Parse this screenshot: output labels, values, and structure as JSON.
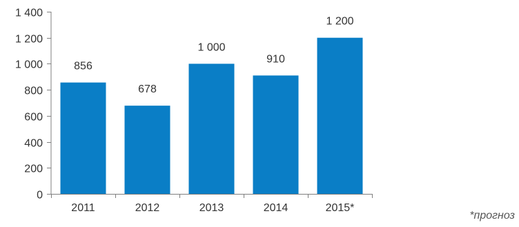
{
  "chart_data": {
    "type": "bar",
    "categories": [
      "2011",
      "2012",
      "2013",
      "2014",
      "2015*"
    ],
    "values": [
      856,
      678,
      1000,
      910,
      1200
    ],
    "data_labels": [
      "856",
      "678",
      "1 000",
      "910",
      "1 200"
    ],
    "yticks": [
      0,
      200,
      400,
      600,
      800,
      1000,
      1200,
      1400
    ],
    "ytick_labels": [
      "0",
      "200",
      "400",
      "600",
      "800",
      "1 000",
      "1 200",
      "1 400"
    ],
    "ylim": [
      0,
      1400
    ],
    "grid": false,
    "legend": "none",
    "bar_color": "#0a7ec6",
    "axis_color": "#7f7f7f",
    "title": "",
    "xlabel": "",
    "ylabel": ""
  },
  "footnote": "*прогноз"
}
